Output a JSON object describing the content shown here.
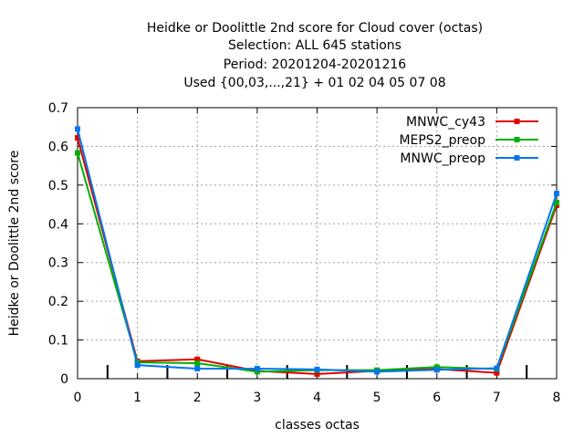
{
  "chart_data": {
    "type": "line",
    "title_lines": [
      "Heidke or Doolittle 2nd score  for Cloud cover (octas)",
      "Selection: ALL    645 stations",
      "Period: 20201204-20201216",
      "Used {00,03,...,21} + 01 02 04 05 07 08"
    ],
    "xlabel": "classes octas",
    "ylabel": "Heidke or Doolittle 2nd score",
    "x": [
      0,
      1,
      2,
      3,
      4,
      5,
      6,
      7,
      8
    ],
    "xlim": [
      0,
      8
    ],
    "ylim": [
      0,
      0.7
    ],
    "xticks": [
      "0",
      "1",
      "2",
      "3",
      "4",
      "5",
      "6",
      "7",
      "8"
    ],
    "yticks": [
      "0",
      "0.1",
      "0.2",
      "0.3",
      "0.4",
      "0.5",
      "0.6",
      "0.7"
    ],
    "yticks_values": [
      0,
      0.1,
      0.2,
      0.3,
      0.4,
      0.5,
      0.6,
      0.7
    ],
    "midpoint_markers_x": [
      0.5,
      1.5,
      2.5,
      3.5,
      4.5,
      5.5,
      6.5,
      7.5
    ],
    "grid": true,
    "legend_position": "top-right",
    "series": [
      {
        "name": "MNWC_cy43",
        "color": "#e00000",
        "values": [
          0.622,
          0.045,
          0.05,
          0.02,
          0.012,
          0.02,
          0.025,
          0.015,
          0.448
        ]
      },
      {
        "name": "MEPS2_preop",
        "color": "#00b000",
        "values": [
          0.583,
          0.042,
          0.04,
          0.018,
          0.022,
          0.022,
          0.03,
          0.025,
          0.455
        ]
      },
      {
        "name": "MNWC_preop",
        "color": "#0077ee",
        "values": [
          0.645,
          0.035,
          0.026,
          0.026,
          0.024,
          0.018,
          0.023,
          0.027,
          0.478
        ]
      }
    ]
  }
}
